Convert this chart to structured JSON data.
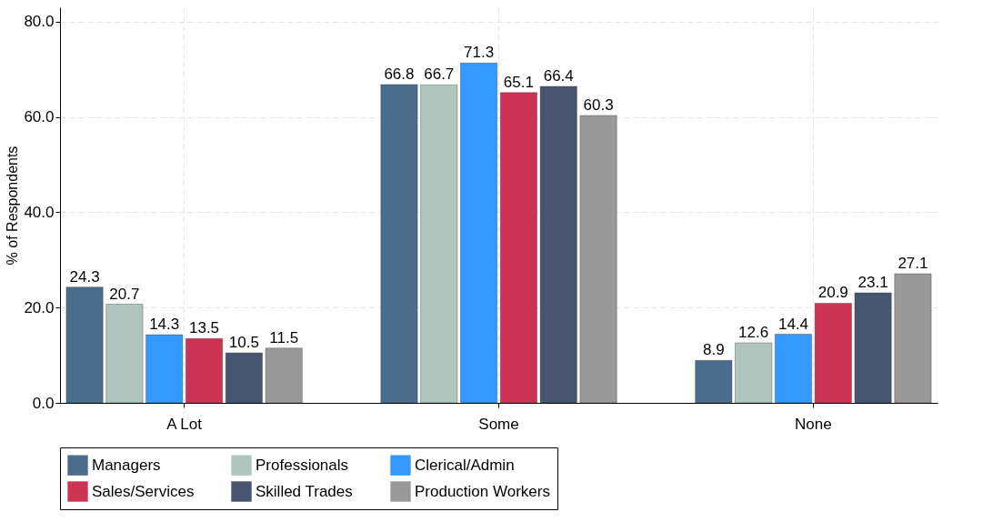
{
  "chart_data": {
    "type": "bar",
    "ylabel": "% of Respondents",
    "categories": [
      "A Lot",
      "Some",
      "None"
    ],
    "series": [
      {
        "name": "Managers",
        "color": "#4a6d8c",
        "values": [
          24.3,
          66.8,
          8.9
        ]
      },
      {
        "name": "Professionals",
        "color": "#aec6be",
        "values": [
          20.7,
          66.7,
          12.6
        ]
      },
      {
        "name": "Clerical/Admin",
        "color": "#3399ff",
        "values": [
          14.3,
          71.3,
          14.4
        ]
      },
      {
        "name": "Sales/Services",
        "color": "#cc3355",
        "values": [
          13.5,
          65.1,
          20.9
        ]
      },
      {
        "name": "Skilled Trades",
        "color": "#485570",
        "values": [
          10.5,
          66.4,
          23.1
        ]
      },
      {
        "name": "Production Workers",
        "color": "#999999",
        "values": [
          11.5,
          60.3,
          27.1
        ]
      }
    ],
    "ylim": [
      0,
      83
    ],
    "yticks": [
      {
        "value": 0,
        "label": "0.0"
      },
      {
        "value": 20,
        "label": "20.0"
      },
      {
        "value": 40,
        "label": "40.0"
      },
      {
        "value": 60,
        "label": "60.0"
      },
      {
        "value": 80,
        "label": "80.0"
      }
    ],
    "grid": true,
    "legend": "bottom",
    "data_labels": true
  }
}
